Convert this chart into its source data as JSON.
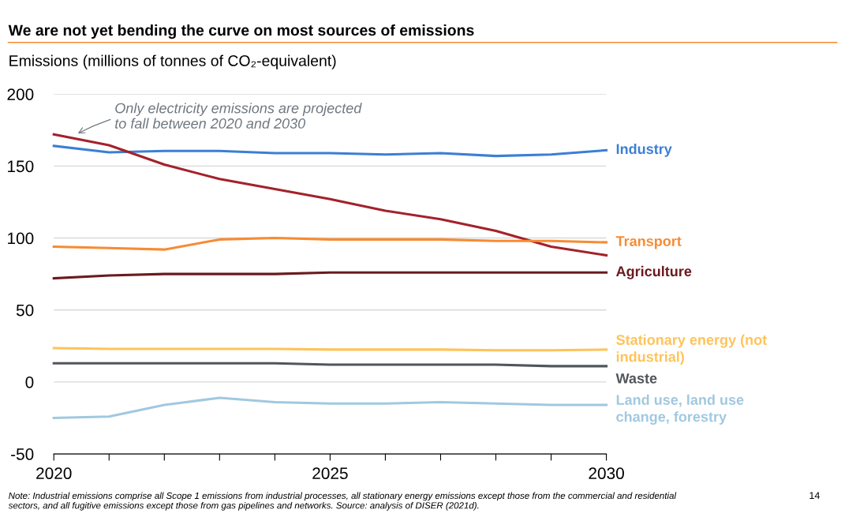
{
  "chart_data": {
    "type": "line",
    "title": "We are not yet bending the curve on most sources of emissions",
    "ylabel": "Emissions (millions of tonnes of CO₂-equivalent)",
    "x": [
      2020,
      2021,
      2022,
      2023,
      2024,
      2025,
      2026,
      2027,
      2028,
      2029,
      2030
    ],
    "series": [
      {
        "name": "Industry",
        "color": "#3c7fd4",
        "values": [
          164,
          159.5,
          160.5,
          160.5,
          159,
          159,
          158,
          159,
          157,
          158,
          161
        ]
      },
      {
        "color": "#a3222a",
        "values": [
          172,
          164.5,
          151,
          141,
          134,
          127,
          119,
          113,
          105,
          94,
          88
        ]
      },
      {
        "name": "Transport",
        "color": "#f68b33",
        "values": [
          94,
          93,
          92,
          99,
          100,
          99,
          99,
          99,
          98,
          98,
          97
        ]
      },
      {
        "name": "Agriculture",
        "color": "#6b1a1f",
        "values": [
          72,
          74,
          75,
          75,
          75,
          76,
          76,
          76,
          76,
          76,
          76
        ]
      },
      {
        "name": "Stationary energy (not\nindustrial)",
        "color": "#ffc35a",
        "values": [
          23.5,
          23,
          23,
          23,
          23,
          22.5,
          22.5,
          22.5,
          22,
          22,
          22.5
        ]
      },
      {
        "name": "Waste",
        "color": "#51565c",
        "values": [
          13,
          13,
          13,
          13,
          13,
          12,
          12,
          12,
          12,
          11,
          11
        ]
      },
      {
        "name": "Land use, land use\nchange, forestry",
        "color": "#a1c8e0",
        "values": [
          -25,
          -24,
          -16,
          -11,
          -14,
          -15,
          -15,
          -14,
          -15,
          -16,
          -16
        ]
      }
    ],
    "xlim": [
      2020,
      2030
    ],
    "xticks": [
      2020,
      {
        "value": 2021,
        "label": null
      },
      {
        "value": 2022,
        "label": null
      },
      {
        "value": 2023,
        "label": null
      },
      {
        "value": 2024,
        "label": null
      },
      2025,
      {
        "value": 2026,
        "label": null
      },
      {
        "value": 2027,
        "label": null
      },
      {
        "value": 2028,
        "label": null
      },
      {
        "value": 2029,
        "label": null
      },
      2030
    ],
    "ylim": [
      -50,
      200
    ],
    "yticks": [
      -50,
      0,
      50,
      100,
      150,
      200
    ],
    "grid": "y",
    "legend": false,
    "line_style": "solid",
    "annotations": [
      {
        "text": "Only electricity emissions are projected\nto fall between 2020 and 2030",
        "x": 2020.4,
        "y": 172
      },
      "Note: Industrial emissions comprise all Scope 1 emissions from industrial processes, all stationary energy emissions except those from the commercial and residential\nsectors, and all fugitive emissions except those from gas pipelines and networks. Source: analysis of DISER (2021d).",
      "14"
    ]
  }
}
